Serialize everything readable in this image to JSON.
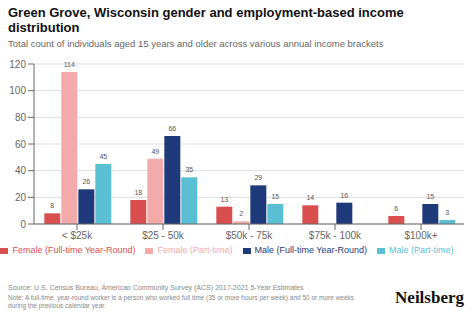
{
  "chart_data": {
    "type": "bar",
    "title": "Green Grove, Wisconsin gender and employment-based income\ndistribution",
    "subtitle": "Total count of individuals aged 15 years and older across various annual income brackets",
    "categories": [
      "< $25k",
      "$25 - 50k",
      "$50k - 75k",
      "$75k - 100k",
      "$100k+"
    ],
    "series": [
      {
        "name": "Female (Full-time Year-Round)",
        "color": "#d94f4f",
        "values": [
          8,
          18,
          13,
          14,
          6
        ]
      },
      {
        "name": "Female (Part-time)",
        "color": "#f2aaaa",
        "values": [
          114,
          49,
          2,
          0,
          0
        ]
      },
      {
        "name": "Male (Full-time Year-Round)",
        "color": "#1e3a7a",
        "values": [
          26,
          66,
          29,
          16,
          15
        ]
      },
      {
        "name": "Male (Part-time)",
        "color": "#5bbfd4",
        "values": [
          45,
          35,
          15,
          0,
          3
        ]
      }
    ],
    "ylim": [
      0,
      120
    ],
    "yticks": [
      0,
      20,
      40,
      60,
      80,
      100,
      120
    ],
    "grid": true,
    "data_labels": true,
    "annotations": [
      "Source: U.S. Census Bureau, American Community Survey (ACS) 2017-2021 5-Year Estimates",
      "Note: A full-time, year-round worker is a person who worked full time (35 or more hours per week) and 50 or more weeks during the previous calendar year.",
      "Neilsberg"
    ]
  }
}
